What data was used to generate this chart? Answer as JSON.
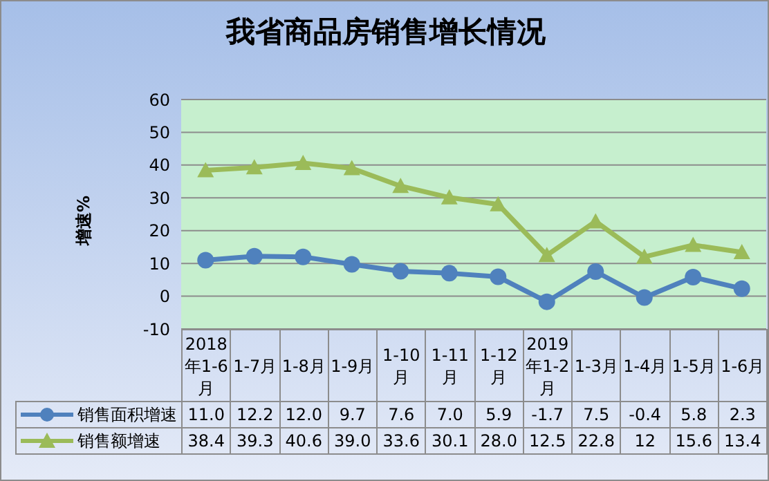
{
  "chart_data": {
    "type": "line",
    "title": "我省商品房销售增长情况",
    "ylabel": "增速%",
    "categories": [
      "2018年1-6月",
      "1-7月",
      "1-8月",
      "1-9月",
      "1-10月",
      "1-11月",
      "1-12月",
      "2019年1-2月",
      "1-3月",
      "1-4月",
      "1-5月",
      "1-6月"
    ],
    "series": [
      {
        "name": "销售面积增速",
        "color": "#4f81bd",
        "marker": "circle",
        "values": [
          11.0,
          12.2,
          12.0,
          9.7,
          7.6,
          7.0,
          5.9,
          -1.7,
          7.5,
          -0.4,
          5.8,
          2.3
        ],
        "value_labels": [
          "11.0",
          "12.2",
          "12.0",
          "9.7",
          "7.6",
          "7.0",
          "5.9",
          "-1.7",
          "7.5",
          "-0.4",
          "5.8",
          "2.3"
        ]
      },
      {
        "name": "销售额增速",
        "color": "#9bbb59",
        "marker": "triangle",
        "values": [
          38.4,
          39.3,
          40.6,
          39.0,
          33.6,
          30.1,
          28.0,
          12.5,
          22.8,
          12,
          15.6,
          13.4
        ],
        "value_labels": [
          "38.4",
          "39.3",
          "40.6",
          "39.0",
          "33.6",
          "30.1",
          "28.0",
          "12.5",
          "22.8",
          "12",
          "15.6",
          "13.4"
        ]
      }
    ],
    "ylim": [
      -10,
      60
    ],
    "yticks": [
      -10,
      0,
      10,
      20,
      30,
      40,
      50,
      60
    ],
    "grid": "y",
    "legend": "bottom"
  }
}
